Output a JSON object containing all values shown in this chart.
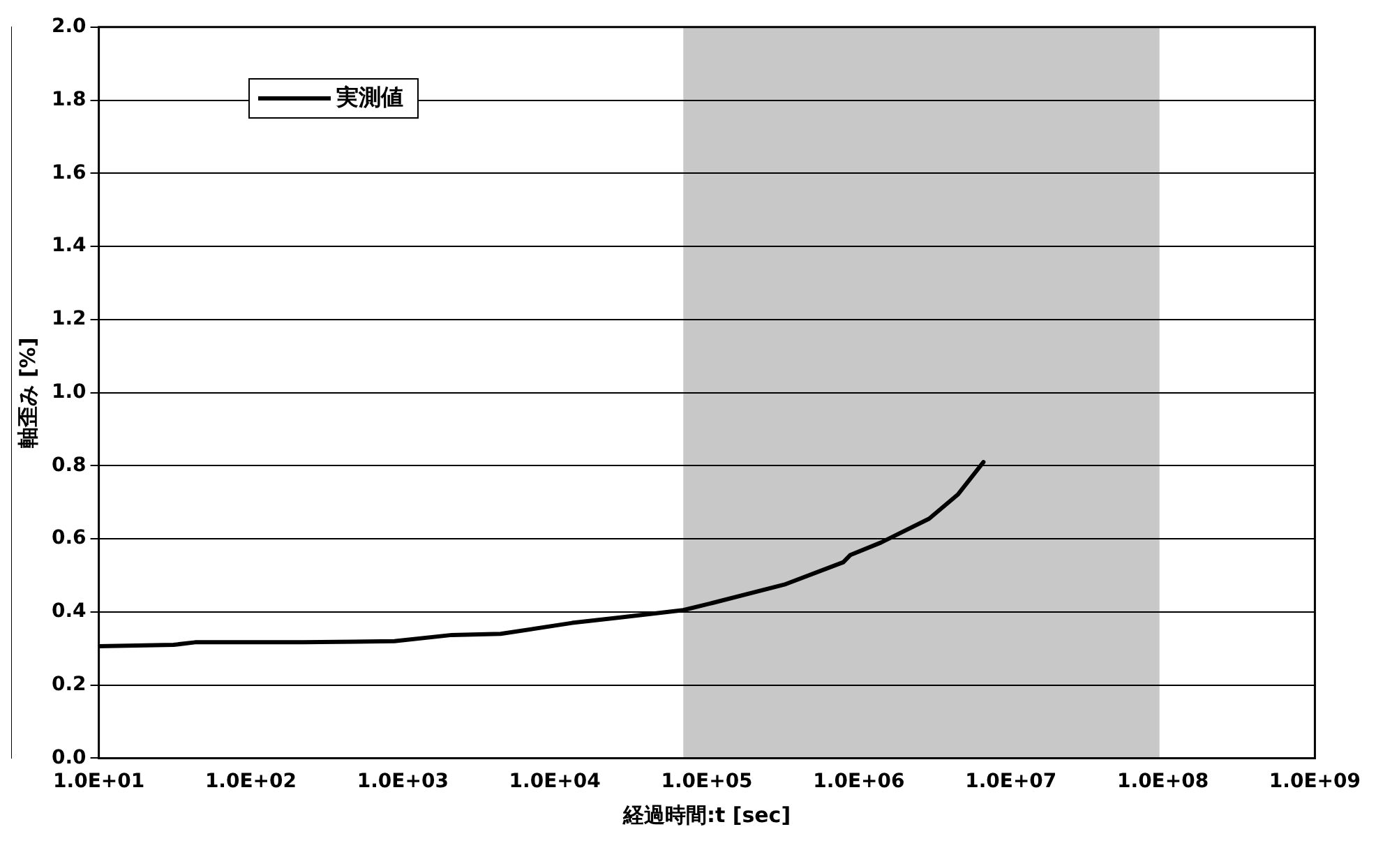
{
  "chart_data": {
    "type": "line",
    "xlabel": "経過時間:t [sec]",
    "ylabel": "軸歪み [%]",
    "log": "x",
    "xlim": [
      10,
      1000000000
    ],
    "xticks": [
      {
        "value": 10,
        "label": "1.0E+01"
      },
      {
        "value": 100,
        "label": "1.0E+02"
      },
      {
        "value": 1000,
        "label": "1.0E+03"
      },
      {
        "value": 10000,
        "label": "1.0E+04"
      },
      {
        "value": 100000,
        "label": "1.0E+05"
      },
      {
        "value": 1000000,
        "label": "1.0E+06"
      },
      {
        "value": 10000000,
        "label": "1.0E+07"
      },
      {
        "value": 100000000,
        "label": "1.0E+08"
      },
      {
        "value": 1000000000,
        "label": "1.0E+09"
      }
    ],
    "ylim": [
      0,
      2
    ],
    "yticks": [
      {
        "value": 0,
        "label": "0.0"
      },
      {
        "value": 0.2,
        "label": "0.2"
      },
      {
        "value": 0.4,
        "label": "0.4"
      },
      {
        "value": 0.6,
        "label": "0.6"
      },
      {
        "value": 0.8,
        "label": "0.8"
      },
      {
        "value": 1,
        "label": "1.0"
      },
      {
        "value": 1.2,
        "label": "1.2"
      },
      {
        "value": 1.4,
        "label": "1.4"
      },
      {
        "value": 1.6,
        "label": "1.6"
      },
      {
        "value": 1.8,
        "label": "1.8"
      },
      {
        "value": 2,
        "label": "2.0"
      }
    ],
    "grid": "y",
    "legend": "top left",
    "marker": "none",
    "line_style": "solid",
    "bands": [
      {
        "axis": "x",
        "from": 70000,
        "to": 95000000,
        "color": "#c8c8c8"
      }
    ],
    "series": [
      {
        "name": "実測値",
        "color": "#000000",
        "x": [
          10,
          31,
          43,
          220,
          880,
          2100,
          4400,
          13000,
          27000,
          70000,
          110000,
          330000,
          790000,
          880000,
          1400000,
          2900000,
          4500000,
          6600000
        ],
        "values": [
          0.306,
          0.31,
          0.317,
          0.317,
          0.32,
          0.337,
          0.34,
          0.37,
          0.385,
          0.405,
          0.425,
          0.476,
          0.536,
          0.556,
          0.59,
          0.655,
          0.722,
          0.81
        ]
      }
    ]
  }
}
